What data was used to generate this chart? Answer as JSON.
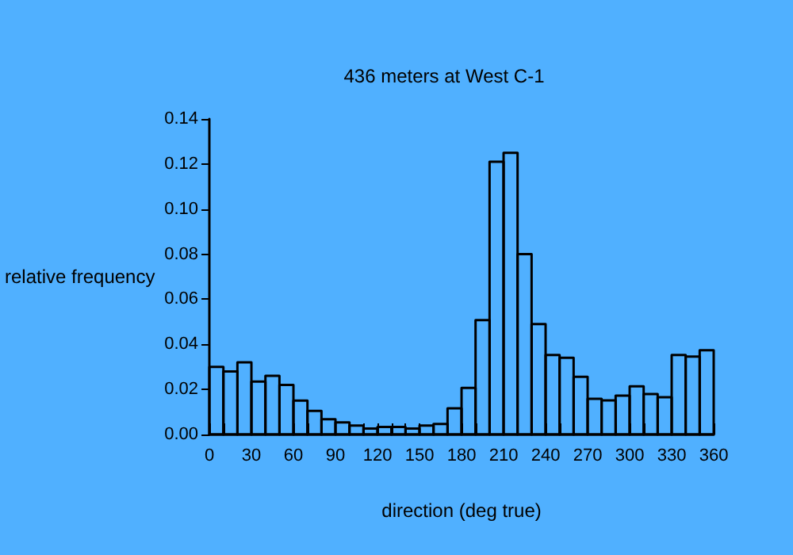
{
  "chart_data": {
    "type": "histogram",
    "title": "436 meters at West C-1",
    "xlabel": "direction (deg true)",
    "ylabel": "relative frequency",
    "bins": [
      0,
      10,
      20,
      30,
      40,
      50,
      60,
      70,
      80,
      90,
      100,
      110,
      120,
      130,
      140,
      150,
      160,
      170,
      180,
      190,
      200,
      210,
      220,
      230,
      240,
      250,
      260,
      270,
      280,
      290,
      300,
      310,
      320,
      330,
      340,
      350,
      360
    ],
    "values": [
      0.03,
      0.028,
      0.032,
      0.0235,
      0.026,
      0.022,
      0.015,
      0.0105,
      0.0068,
      0.0054,
      0.004,
      0.0026,
      0.0033,
      0.0033,
      0.0026,
      0.004,
      0.0047,
      0.0116,
      0.0207,
      0.0507,
      0.121,
      0.125,
      0.08,
      0.049,
      0.0353,
      0.034,
      0.0256,
      0.0158,
      0.0151,
      0.0172,
      0.0214,
      0.0179,
      0.0165,
      0.0353,
      0.0346,
      0.0374
    ],
    "color": "#000000",
    "xlim": [
      0,
      360
    ],
    "xticks": [
      0,
      {
        "value": 10,
        "label": null
      },
      {
        "value": 20,
        "label": null
      },
      30,
      {
        "value": 40,
        "label": null
      },
      {
        "value": 50,
        "label": null
      },
      60,
      {
        "value": 70,
        "label": null
      },
      {
        "value": 80,
        "label": null
      },
      90,
      {
        "value": 100,
        "label": null
      },
      {
        "value": 110,
        "label": null
      },
      120,
      {
        "value": 130,
        "label": null
      },
      {
        "value": 140,
        "label": null
      },
      150,
      {
        "value": 160,
        "label": null
      },
      {
        "value": 170,
        "label": null
      },
      180,
      {
        "value": 190,
        "label": null
      },
      {
        "value": 200,
        "label": null
      },
      210,
      {
        "value": 220,
        "label": null
      },
      {
        "value": 230,
        "label": null
      },
      240,
      {
        "value": 250,
        "label": null
      },
      {
        "value": 260,
        "label": null
      },
      270,
      {
        "value": 280,
        "label": null
      },
      {
        "value": 290,
        "label": null
      },
      300,
      {
        "value": 310,
        "label": null
      },
      {
        "value": 320,
        "label": null
      },
      330,
      {
        "value": 340,
        "label": null
      },
      {
        "value": 350,
        "label": null
      },
      360
    ],
    "ylim": [
      0,
      0.14
    ],
    "yticks": [
      {
        "value": 0,
        "label": "0.00"
      },
      {
        "value": 0.02,
        "label": "0.02"
      },
      {
        "value": 0.04,
        "label": "0.04"
      },
      {
        "value": 0.06,
        "label": "0.06"
      },
      {
        "value": 0.08,
        "label": "0.08"
      },
      {
        "value": 0.1,
        "label": "0.10"
      },
      {
        "value": 0.12,
        "label": "0.12"
      },
      {
        "value": 0.14,
        "label": "0.14"
      }
    ],
    "grid": false
  }
}
